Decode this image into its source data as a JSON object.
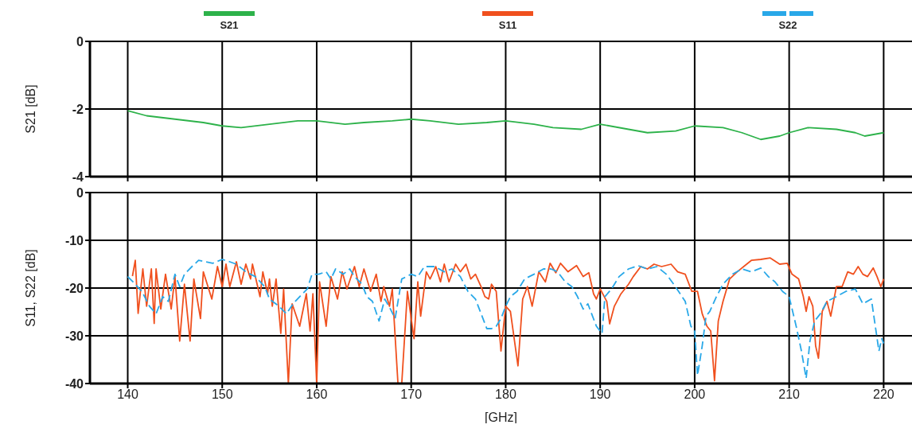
{
  "chart_data": [
    {
      "type": "line",
      "ylabel": "S21 [dB]",
      "xlim": [
        136,
        223
      ],
      "xticks": [
        140,
        150,
        160,
        170,
        180,
        190,
        200,
        210,
        220
      ],
      "ylim": [
        -4,
        0
      ],
      "yticks": [
        0,
        -2,
        -4
      ],
      "grid": true,
      "legend": "top",
      "tick_labels": "y",
      "series": [
        {
          "name": "S21",
          "color": "#2db24a",
          "x": [
            140,
            142,
            145,
            148,
            150,
            152,
            155,
            158,
            160,
            163,
            165,
            168,
            170,
            172,
            175,
            178,
            180,
            183,
            185,
            188,
            190,
            193,
            195,
            198,
            200,
            203,
            205,
            207,
            209,
            210,
            212,
            215,
            217,
            218,
            220
          ],
          "values": [
            -2.05,
            -2.2,
            -2.3,
            -2.4,
            -2.5,
            -2.55,
            -2.45,
            -2.35,
            -2.35,
            -2.45,
            -2.4,
            -2.35,
            -2.3,
            -2.35,
            -2.45,
            -2.4,
            -2.35,
            -2.45,
            -2.55,
            -2.6,
            -2.45,
            -2.6,
            -2.7,
            -2.65,
            -2.5,
            -2.55,
            -2.7,
            -2.9,
            -2.8,
            -2.7,
            -2.55,
            -2.6,
            -2.7,
            -2.8,
            -2.7
          ]
        }
      ]
    },
    {
      "type": "line",
      "xlabel": "[GHz]",
      "ylabel": "S11, S22 [dB]",
      "xlim": [
        136,
        223
      ],
      "xticks": [
        140,
        150,
        160,
        170,
        180,
        190,
        200,
        210,
        220
      ],
      "ylim": [
        -40,
        0
      ],
      "yticks": [
        0,
        -10,
        -20,
        -30,
        -40
      ],
      "grid": true,
      "legend": "top",
      "series": [
        {
          "name": "S11",
          "color": "#f0501e",
          "x": [
            140.5,
            140.8,
            141.1,
            141.6,
            142,
            142.5,
            142.8,
            143,
            143.5,
            144,
            144.6,
            145,
            145.5,
            146,
            146.6,
            147,
            147.7,
            148,
            148.9,
            149.5,
            150,
            150.4,
            150.8,
            151.5,
            152,
            152.5,
            153,
            153.2,
            154,
            154.3,
            154.8,
            155,
            155.3,
            155.7,
            156.2,
            156.5,
            157,
            157.4,
            158.2,
            158.9,
            159.3,
            159.6,
            160,
            160.3,
            161,
            161.5,
            162.2,
            162.7,
            163.2,
            164,
            164.5,
            165,
            165.7,
            166.3,
            166.8,
            167.1,
            167.7,
            168,
            168.6,
            169,
            169.6,
            170.3,
            170.7,
            171,
            171.6,
            172,
            172.6,
            173.1,
            173.5,
            174,
            174.7,
            175.2,
            175.8,
            176.3,
            176.8,
            177.5,
            177.8,
            178.2,
            178.5,
            179,
            179.5,
            180,
            180.5,
            181.3,
            181.8,
            182.3,
            182.8,
            183.5,
            184.2,
            184.7,
            185.3,
            185.8,
            186.6,
            187.5,
            188.2,
            188.8,
            189.3,
            189.6,
            190,
            190.7,
            191,
            191.5,
            192.2,
            193,
            193.5,
            194.3,
            195,
            195.7,
            196.5,
            197.5,
            198.2,
            199,
            199.7,
            200.3,
            200.8,
            201.3,
            201.7,
            202.1,
            202.5,
            203,
            203.7,
            204.5,
            205.5,
            206,
            207,
            208,
            209,
            209.8,
            210.3,
            211,
            211.5,
            211.8,
            212.1,
            212.5,
            212.8,
            213.1,
            213.5,
            214,
            214.4,
            215,
            215.6,
            216.2,
            216.8,
            217.3,
            217.8,
            218.3,
            218.9,
            219.3,
            219.7,
            220
          ],
          "values": [
            -17.5,
            -14.2,
            -25.3,
            -16,
            -23.8,
            -16,
            -27.4,
            -16,
            -24.4,
            -17.1,
            -24.4,
            -17.6,
            -31.1,
            -19.2,
            -31.1,
            -18.1,
            -26.4,
            -16.6,
            -22.3,
            -15.5,
            -19.7,
            -15,
            -19.7,
            -14.5,
            -19.2,
            -15,
            -18.1,
            -15,
            -21.8,
            -16.6,
            -21.2,
            -18.1,
            -23.8,
            -18.1,
            -29.5,
            -20.2,
            -40,
            -23.3,
            -28,
            -21.2,
            -29,
            -21.2,
            -40,
            -18.7,
            -28,
            -17.6,
            -22.3,
            -16.6,
            -20.2,
            -15.5,
            -19.7,
            -16,
            -20.7,
            -17.1,
            -22.8,
            -19.7,
            -23.8,
            -20.2,
            -40,
            -40,
            -20.7,
            -30.6,
            -18.7,
            -25.9,
            -16.6,
            -18.1,
            -15.5,
            -18.7,
            -15,
            -18.7,
            -15,
            -16.6,
            -15,
            -18.1,
            -17.1,
            -20.2,
            -21.8,
            -22.3,
            -19.2,
            -20.7,
            -33.2,
            -23.8,
            -24.9,
            -36.3,
            -22.3,
            -19.7,
            -23.8,
            -16.6,
            -18.7,
            -14.8,
            -16.8,
            -14.8,
            -16.6,
            -15.3,
            -17.6,
            -16.8,
            -21.2,
            -22.3,
            -20.2,
            -22.8,
            -27.5,
            -23.8,
            -21.2,
            -19.2,
            -17.6,
            -15.5,
            -16,
            -15,
            -15.5,
            -15,
            -16.6,
            -17.1,
            -20.7,
            -20.7,
            -25.4,
            -28,
            -29,
            -39.4,
            -26.9,
            -22.8,
            -18.1,
            -16.6,
            -15,
            -14.2,
            -14,
            -13.7,
            -15,
            -14.8,
            -17.1,
            -18.1,
            -21.8,
            -24.9,
            -21.8,
            -23.8,
            -32.1,
            -34.7,
            -24.9,
            -22.8,
            -25.9,
            -19.7,
            -19.7,
            -16.6,
            -17.1,
            -15.5,
            -17.1,
            -17.6,
            -15.8,
            -17.6,
            -19.7,
            -18.1
          ]
        },
        {
          "name": "S22",
          "color": "#29a8e8",
          "line_style": "dashed",
          "x": [
            140,
            140.8,
            141.5,
            142.3,
            143,
            143.7,
            144.3,
            145,
            145.5,
            146,
            146.8,
            147.5,
            148.3,
            149,
            150,
            150.8,
            151.5,
            152.5,
            153.5,
            154.5,
            155,
            156,
            156.8,
            157.5,
            158.2,
            159,
            159.5,
            160.2,
            161,
            161.5,
            162,
            162.8,
            163.5,
            164,
            164.8,
            165.3,
            165.9,
            166.6,
            167.2,
            167.8,
            168.3,
            169,
            170,
            170.7,
            171.4,
            172.5,
            173.5,
            174.3,
            175.2,
            176,
            176.8,
            177.5,
            178,
            178.5,
            179,
            179.5,
            180,
            180.5,
            181.2,
            182,
            183,
            184,
            184.8,
            185.5,
            186.3,
            187,
            187.6,
            188.2,
            188.7,
            189,
            189.6,
            190.2,
            190.5,
            191.2,
            192,
            193,
            194,
            195,
            196,
            197,
            197.6,
            198.3,
            199,
            199.6,
            200,
            200.3,
            200.8,
            201.2,
            201.6,
            202.3,
            203,
            204,
            205,
            206,
            207,
            207.8,
            208.5,
            209.3,
            210,
            210.8,
            211.3,
            211.8,
            212.2,
            212.7,
            213.3,
            214,
            215,
            216,
            217,
            217.8,
            218.7,
            219,
            219.5,
            219.8,
            220
          ],
          "values": [
            -17.6,
            -19.2,
            -20.7,
            -23.8,
            -25.4,
            -21.8,
            -22.8,
            -17.1,
            -19.7,
            -17.1,
            -15.5,
            -14.2,
            -14.5,
            -14.8,
            -14,
            -14.5,
            -15,
            -16.6,
            -17.6,
            -19.7,
            -22.3,
            -23.8,
            -25.4,
            -23.3,
            -21.8,
            -20.2,
            -17.1,
            -17.1,
            -16.6,
            -18.1,
            -16,
            -17.1,
            -16,
            -17.6,
            -19.2,
            -21.8,
            -22.8,
            -26.9,
            -22.3,
            -24.4,
            -26.4,
            -18.1,
            -17.1,
            -17.6,
            -15.5,
            -15.5,
            -16.6,
            -16,
            -17.6,
            -20.7,
            -22.3,
            -25.9,
            -28.5,
            -28.5,
            -28,
            -26.4,
            -23.8,
            -21.8,
            -20.7,
            -18.1,
            -17.1,
            -16,
            -16,
            -16.6,
            -18.7,
            -19.7,
            -21.8,
            -24.4,
            -23.3,
            -24.9,
            -28,
            -29.5,
            -21.8,
            -20.2,
            -17.6,
            -16,
            -15.3,
            -16,
            -15.5,
            -17.1,
            -18.7,
            -20.7,
            -22.8,
            -28,
            -29,
            -38.3,
            -32.1,
            -25.9,
            -24.9,
            -21.8,
            -19.2,
            -17.1,
            -16,
            -16.6,
            -15.8,
            -17.6,
            -18.7,
            -20.7,
            -21.8,
            -28.5,
            -33.2,
            -38.9,
            -31.1,
            -26.9,
            -25.4,
            -22.8,
            -21.8,
            -20.7,
            -20.2,
            -23.3,
            -22.3,
            -26.4,
            -33.2,
            -30.6,
            -31.6
          ]
        }
      ]
    }
  ]
}
